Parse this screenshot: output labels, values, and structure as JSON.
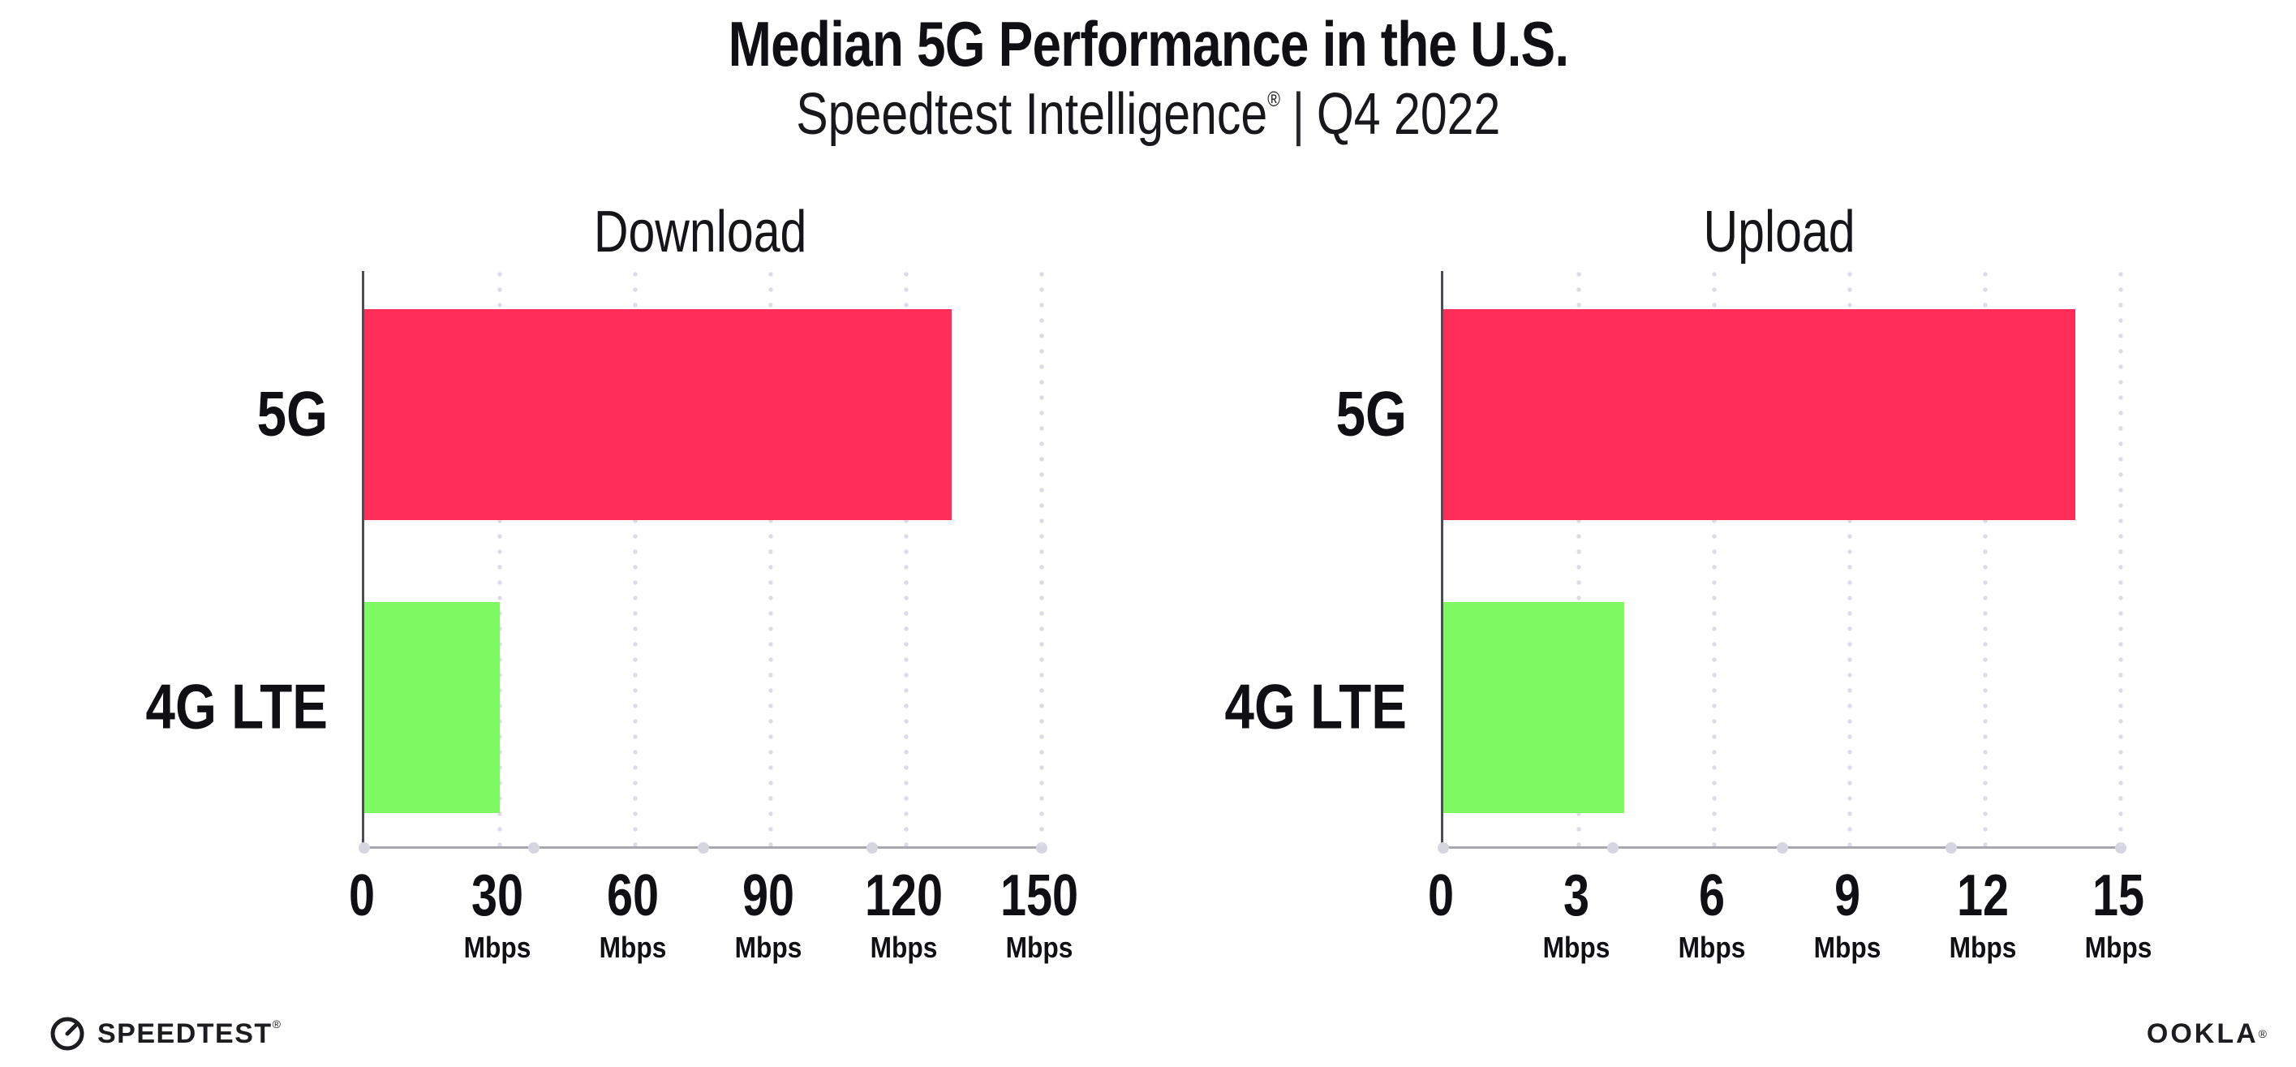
{
  "page": {
    "title": "Median 5G Performance in the U.S.",
    "subtitle": {
      "brand": "Speedtest Intelligence",
      "registered_mark": "®",
      "separator": "|",
      "period": "Q4 2022"
    },
    "footer": {
      "speedtest_label": "SPEEDTEST",
      "speedtest_mark": "®",
      "speedtest_icon": "gauge-icon",
      "ookla_label": "OOKLA",
      "ookla_mark": "®"
    }
  },
  "colors": {
    "bar_5g": "#FF2E58",
    "bar_4g_lte": "#7EFB63",
    "gridline_dots": "#DCDCE8",
    "axis_x": "#A8A8AE",
    "axis_y": "#4D4D55",
    "axis_quarter_dots": "#D6D6E2",
    "text": "#0F0F14"
  },
  "chart_data": [
    {
      "type": "bar",
      "orientation": "horizontal",
      "title": "Download",
      "categories": [
        "5G",
        "4G LTE"
      ],
      "values": [
        130,
        30
      ],
      "unit": "Mbps",
      "xlim": [
        0,
        150
      ],
      "xticks": [
        0,
        30,
        60,
        90,
        120,
        150
      ],
      "tick_unit_shown_on_zero": false,
      "series_colors": [
        "#FF2E58",
        "#7EFB63"
      ],
      "grid": "dotted-vertical",
      "legend": "none"
    },
    {
      "type": "bar",
      "orientation": "horizontal",
      "title": "Upload",
      "categories": [
        "5G",
        "4G LTE"
      ],
      "values": [
        14,
        4
      ],
      "unit": "Mbps",
      "xlim": [
        0,
        15
      ],
      "xticks": [
        0,
        3,
        6,
        9,
        12,
        15
      ],
      "tick_unit_shown_on_zero": false,
      "series_colors": [
        "#FF2E58",
        "#7EFB63"
      ],
      "grid": "dotted-vertical",
      "legend": "none"
    }
  ]
}
